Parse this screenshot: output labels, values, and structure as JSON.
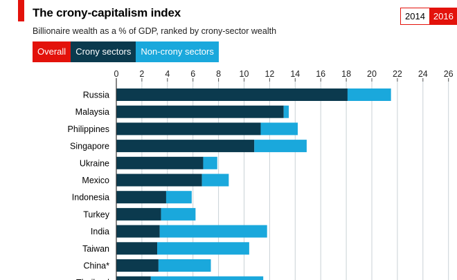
{
  "header": {
    "title": "The crony-capitalism index",
    "subtitle": "Billionaire wealth as a % of GDP, ranked by crony-sector wealth"
  },
  "year_toggle": {
    "options": [
      "2014",
      "2016"
    ],
    "selected": "2016"
  },
  "tabs": [
    {
      "label": "Overall",
      "color": "#e3120b"
    },
    {
      "label": "Crony sectors",
      "color": "#0b3a4e"
    },
    {
      "label": "Non-crony sectors",
      "color": "#1aa8dc"
    }
  ],
  "colors": {
    "accent": "#e3120b",
    "crony": "#0b3a4e",
    "noncrony": "#1aa8dc",
    "grid": "#c9d1d6"
  },
  "chart_data": {
    "type": "bar",
    "orientation": "horizontal",
    "stacked": true,
    "categories": [
      "Russia",
      "Malaysia",
      "Philippines",
      "Singapore",
      "Ukraine",
      "Mexico",
      "Indonesia",
      "Turkey",
      "India",
      "Taiwan",
      "China*",
      "Thailand"
    ],
    "series": [
      {
        "name": "Crony sectors",
        "values": [
          18.1,
          13.1,
          11.3,
          10.8,
          6.8,
          6.7,
          3.9,
          3.5,
          3.4,
          3.2,
          3.3,
          2.7
        ]
      },
      {
        "name": "Non-crony sectors",
        "values": [
          3.4,
          0.4,
          2.9,
          4.1,
          1.1,
          2.1,
          2.0,
          2.7,
          8.4,
          7.2,
          4.1,
          8.8
        ]
      }
    ],
    "xlim": [
      0,
      26
    ],
    "xticks": [
      0,
      2,
      4,
      6,
      8,
      10,
      12,
      14,
      16,
      18,
      20,
      22,
      24,
      26
    ],
    "grid": true,
    "axis_position": "top"
  }
}
